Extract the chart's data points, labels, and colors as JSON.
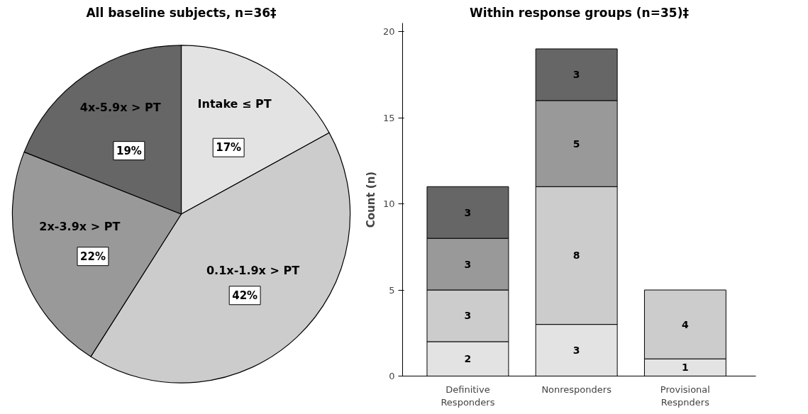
{
  "chart_data": [
    {
      "type": "pie",
      "title": "All baseline subjects, n=36‡",
      "categories": [
        "Intake ≤ PT",
        "0.1x-1.9x > PT",
        "2x-3.9x  > PT",
        "4x-5.9x  > PT"
      ],
      "values": [
        17,
        42,
        22,
        19
      ],
      "value_labels": [
        "17%",
        "42%",
        "22%",
        "19%"
      ],
      "colors": [
        "#e3e3e3",
        "#cccccc",
        "#999999",
        "#666666"
      ]
    },
    {
      "type": "bar",
      "stacked": true,
      "title": "Within response groups (n=35)‡",
      "ylabel": "Count (n)",
      "categories": [
        "Definitive\nResponders",
        "Nonresponders",
        "Provisional\nRespnders"
      ],
      "ylim": [
        0,
        20.5
      ],
      "yticks": [
        0,
        5,
        10,
        15,
        20
      ],
      "grid": false,
      "data_labels": true,
      "series": [
        {
          "color": "#e3e3e3",
          "values": [
            2,
            3,
            1
          ]
        },
        {
          "color": "#cccccc",
          "values": [
            3,
            8,
            4
          ]
        },
        {
          "color": "#999999",
          "values": [
            3,
            5,
            null
          ]
        },
        {
          "color": "#666666",
          "values": [
            3,
            3,
            null
          ]
        }
      ]
    }
  ]
}
